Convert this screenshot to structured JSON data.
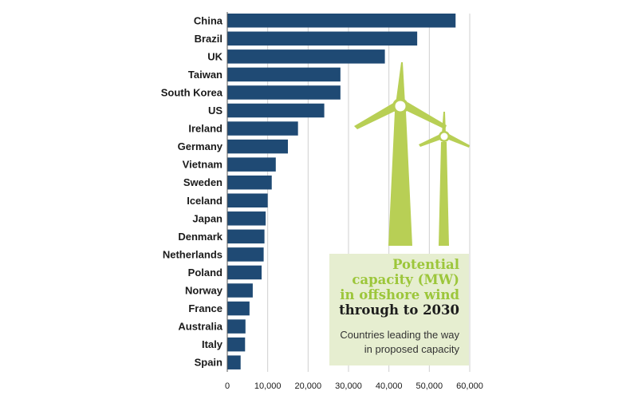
{
  "colors": {
    "bar": "#1f4a74",
    "turbine": "#b8cf55",
    "grid": "#cfcfcf",
    "panel": "#e6eed0",
    "title_accent": "#9cc63a"
  },
  "title": {
    "line1": "Potential",
    "line2": "capacity (MW)",
    "line3": "in offshore wind",
    "line4": "through to 2030"
  },
  "subtitle": {
    "line1": "Countries leading the way",
    "line2": "in proposed capacity"
  },
  "decoration": {
    "icon": "wind-turbine-icon"
  },
  "chart_data": {
    "type": "bar",
    "orientation": "horizontal",
    "categories": [
      "China",
      "Brazil",
      "UK",
      "Taiwan",
      "South Korea",
      "US",
      "Ireland",
      "Germany",
      "Vietnam",
      "Sweden",
      "Iceland",
      "Japan",
      "Denmark",
      "Netherlands",
      "Poland",
      "Norway",
      "France",
      "Australia",
      "Italy",
      "Spain"
    ],
    "values": [
      56500,
      47000,
      39000,
      28000,
      28000,
      24000,
      17500,
      15000,
      12000,
      11000,
      10000,
      9500,
      9200,
      9000,
      8500,
      6300,
      5500,
      4500,
      4400,
      3300
    ],
    "xlim": [
      0,
      60000
    ],
    "xticks": [
      0,
      10000,
      20000,
      30000,
      40000,
      50000,
      60000
    ],
    "xtick_labels": [
      "0",
      "10,000",
      "20,000",
      "30,000",
      "40,000",
      "50,000",
      "60,000"
    ],
    "grid": true
  }
}
